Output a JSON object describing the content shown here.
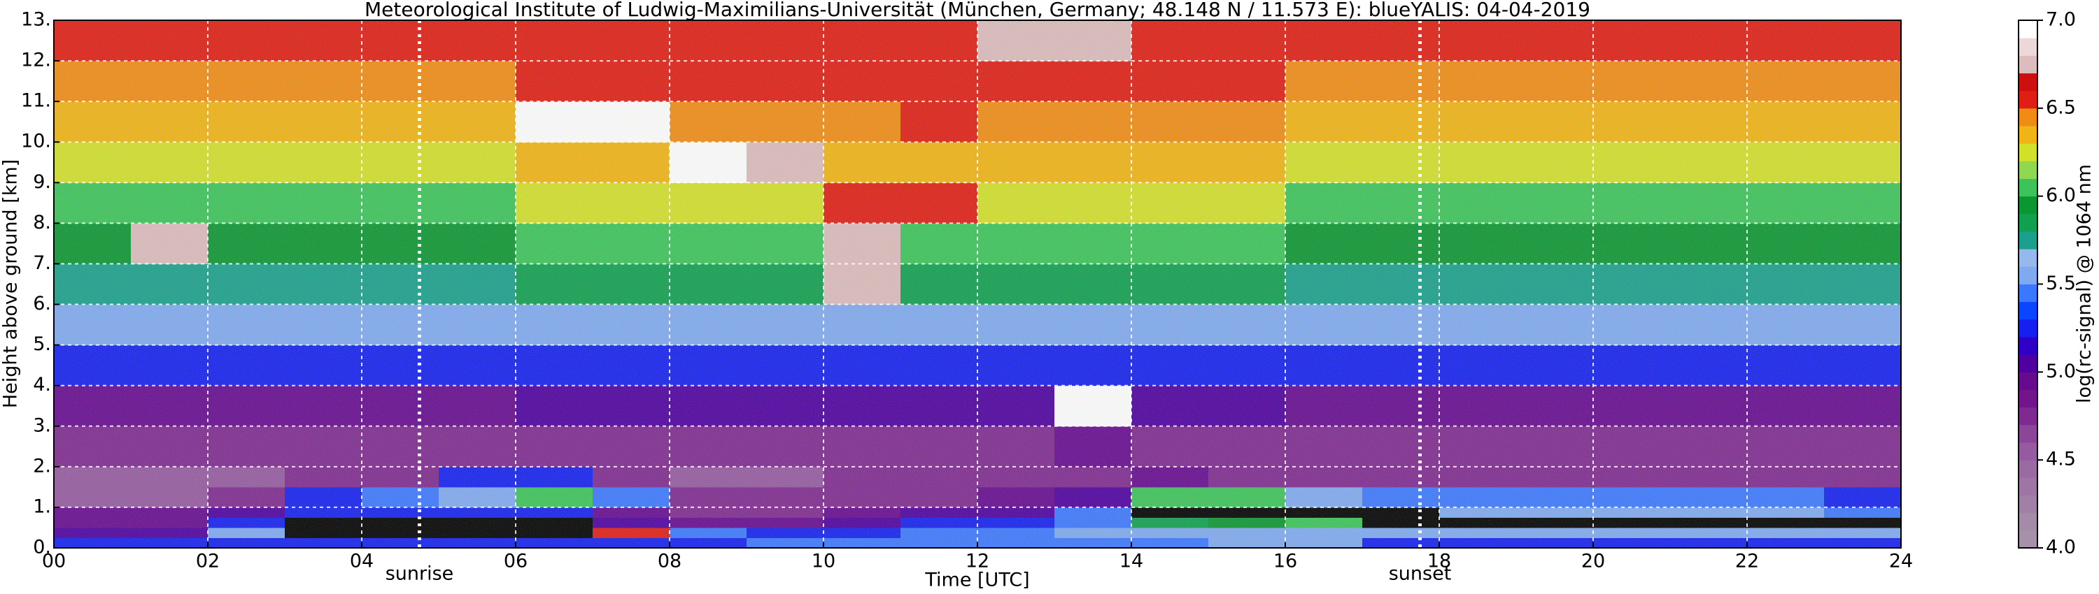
{
  "chart_data": {
    "type": "heatmap",
    "title": "Meteorological Institute of Ludwig-Maximilians-Universität (München, Germany; 48.148 N / 11.573 E):    blueYALIS: 04-04-2019",
    "xlabel": "Time [UTC]",
    "ylabel": "Height above ground [km]",
    "xlim": [
      0,
      24
    ],
    "xticks": [
      {
        "value": 0,
        "label": "00"
      },
      {
        "value": 2,
        "label": "02"
      },
      {
        "value": 4,
        "label": "04"
      },
      {
        "value": 6,
        "label": "06"
      },
      {
        "value": 8,
        "label": "08"
      },
      {
        "value": 10,
        "label": "10"
      },
      {
        "value": 12,
        "label": "12"
      },
      {
        "value": 14,
        "label": "14"
      },
      {
        "value": 16,
        "label": "16"
      },
      {
        "value": 18,
        "label": "18"
      },
      {
        "value": 20,
        "label": "20"
      },
      {
        "value": 22,
        "label": "22"
      },
      {
        "value": 24,
        "label": "24"
      }
    ],
    "ylim": [
      0,
      13
    ],
    "yticks": [
      {
        "value": 0,
        "label": "0."
      },
      {
        "value": 1,
        "label": "1."
      },
      {
        "value": 2,
        "label": "2."
      },
      {
        "value": 3,
        "label": "3."
      },
      {
        "value": 4,
        "label": "4."
      },
      {
        "value": 5,
        "label": "5."
      },
      {
        "value": 6,
        "label": "6."
      },
      {
        "value": 7,
        "label": "7."
      },
      {
        "value": 8,
        "label": "8."
      },
      {
        "value": 9,
        "label": "9."
      },
      {
        "value": 10,
        "label": "10."
      },
      {
        "value": 11,
        "label": "11."
      },
      {
        "value": 12,
        "label": "12."
      },
      {
        "value": 13,
        "label": "13."
      }
    ],
    "grid": true,
    "x_bins": [
      0,
      1,
      2,
      3,
      4,
      5,
      6,
      7,
      8,
      9,
      10,
      11,
      12,
      13,
      14,
      15,
      16,
      17,
      18,
      19,
      20,
      21,
      22,
      23,
      24
    ],
    "y_bins": [
      0,
      0.25,
      0.5,
      0.75,
      1,
      1.5,
      2,
      3,
      4,
      5,
      6,
      7,
      8,
      9,
      10,
      11,
      12,
      13
    ],
    "values": [
      [
        5.2,
        5.2,
        5.3,
        5.3,
        5.3,
        5.3,
        5.3,
        5.3,
        5.3,
        5.4,
        5.4,
        5.4,
        5.4,
        5.4,
        5.4,
        5.5,
        5.5,
        5.3,
        5.3,
        5.3,
        5.3,
        5.3,
        5.3,
        5.3
      ],
      [
        5.0,
        5.0,
        5.6,
        7.2,
        7.2,
        7.2,
        7.2,
        6.5,
        5.4,
        5.3,
        5.3,
        5.4,
        5.4,
        5.5,
        5.6,
        5.6,
        5.6,
        5.5,
        5.5,
        5.5,
        5.5,
        5.5,
        5.5,
        5.5
      ],
      [
        4.9,
        4.9,
        5.2,
        7.2,
        7.2,
        7.2,
        7.2,
        5.0,
        4.9,
        4.9,
        5.0,
        5.2,
        5.3,
        5.4,
        5.8,
        5.9,
        6.0,
        7.2,
        7.2,
        7.2,
        7.2,
        7.2,
        7.2,
        7.2
      ],
      [
        4.9,
        4.9,
        5.0,
        5.2,
        5.2,
        5.3,
        5.3,
        4.9,
        4.8,
        4.8,
        4.9,
        5.0,
        5.1,
        5.4,
        7.2,
        7.2,
        7.2,
        7.2,
        5.5,
        5.5,
        5.5,
        5.5,
        5.5,
        5.4
      ],
      [
        4.6,
        4.6,
        4.7,
        5.3,
        5.4,
        5.5,
        6.0,
        5.4,
        4.7,
        4.7,
        4.8,
        4.8,
        4.9,
        5.0,
        6.1,
        6.0,
        5.5,
        5.4,
        5.4,
        5.4,
        5.4,
        5.4,
        5.4,
        5.3
      ],
      [
        4.6,
        4.6,
        4.6,
        4.7,
        4.8,
        5.3,
        5.2,
        4.8,
        4.6,
        4.6,
        4.7,
        4.7,
        4.8,
        4.8,
        4.9,
        4.8,
        4.8,
        4.7,
        4.7,
        4.7,
        4.7,
        4.7,
        4.7,
        4.7
      ],
      [
        4.7,
        4.7,
        4.7,
        4.7,
        4.7,
        4.7,
        4.8,
        4.8,
        4.8,
        4.8,
        4.8,
        4.8,
        4.8,
        4.9,
        4.8,
        4.8,
        4.7,
        4.7,
        4.7,
        4.7,
        4.7,
        4.7,
        4.7,
        4.7
      ],
      [
        4.9,
        4.9,
        4.9,
        4.9,
        4.9,
        4.9,
        5.0,
        5.0,
        5.0,
        5.0,
        5.0,
        5.0,
        5.0,
        6.9,
        5.0,
        5.0,
        4.9,
        4.9,
        4.9,
        4.9,
        4.9,
        4.9,
        4.9,
        4.9
      ],
      [
        5.2,
        5.2,
        5.2,
        5.2,
        5.2,
        5.2,
        5.3,
        5.3,
        5.3,
        5.3,
        5.3,
        5.3,
        5.3,
        5.3,
        5.3,
        5.3,
        5.2,
        5.2,
        5.2,
        5.2,
        5.2,
        5.2,
        5.2,
        5.2
      ],
      [
        5.5,
        5.5,
        5.5,
        5.5,
        5.5,
        5.5,
        5.6,
        5.6,
        5.6,
        5.6,
        5.6,
        5.6,
        5.6,
        5.6,
        5.6,
        5.6,
        5.5,
        5.5,
        5.5,
        5.5,
        5.5,
        5.5,
        5.5,
        5.5
      ],
      [
        5.7,
        5.7,
        5.7,
        5.7,
        5.7,
        5.7,
        5.8,
        5.8,
        5.8,
        5.8,
        6.7,
        5.8,
        5.8,
        5.8,
        5.8,
        5.8,
        5.7,
        5.7,
        5.7,
        5.7,
        5.7,
        5.7,
        5.7,
        5.7
      ],
      [
        5.9,
        6.8,
        5.9,
        5.9,
        5.9,
        5.9,
        6.0,
        6.0,
        6.0,
        6.0,
        6.8,
        6.0,
        6.0,
        6.0,
        6.0,
        6.0,
        5.9,
        5.9,
        5.9,
        5.9,
        5.9,
        5.9,
        5.9,
        5.9
      ],
      [
        6.1,
        6.1,
        6.1,
        6.1,
        6.1,
        6.1,
        6.2,
        6.2,
        6.2,
        6.2,
        6.6,
        6.6,
        6.2,
        6.2,
        6.2,
        6.2,
        6.1,
        6.1,
        6.1,
        6.1,
        6.1,
        6.1,
        6.1,
        6.1
      ],
      [
        6.2,
        6.2,
        6.2,
        6.2,
        6.2,
        6.2,
        6.3,
        6.3,
        6.9,
        6.8,
        6.3,
        6.3,
        6.3,
        6.3,
        6.3,
        6.3,
        6.2,
        6.2,
        6.2,
        6.2,
        6.2,
        6.2,
        6.2,
        6.2
      ],
      [
        6.3,
        6.3,
        6.3,
        6.3,
        6.3,
        6.3,
        6.9,
        6.9,
        6.4,
        6.4,
        6.4,
        6.6,
        6.4,
        6.4,
        6.4,
        6.4,
        6.3,
        6.3,
        6.3,
        6.3,
        6.3,
        6.3,
        6.3,
        6.3
      ],
      [
        6.4,
        6.4,
        6.4,
        6.4,
        6.4,
        6.4,
        6.5,
        6.5,
        6.5,
        6.5,
        6.5,
        6.5,
        6.6,
        6.6,
        6.5,
        6.5,
        6.4,
        6.4,
        6.4,
        6.4,
        6.4,
        6.4,
        6.4,
        6.4
      ],
      [
        6.5,
        6.5,
        6.5,
        6.5,
        6.5,
        6.5,
        6.6,
        6.6,
        6.6,
        6.6,
        6.6,
        6.6,
        6.7,
        6.7,
        6.6,
        6.6,
        6.5,
        6.5,
        6.5,
        6.5,
        6.5,
        6.5,
        6.5,
        6.5
      ]
    ],
    "annotations": [
      {
        "text": "sunrise",
        "x": 4.75
      },
      {
        "text": "sunset",
        "x": 17.75
      }
    ],
    "colorbar": {
      "label": "log(rc-signal) @ 1064 nm",
      "lim": [
        4,
        7
      ],
      "ticks": [
        {
          "value": 4,
          "label": "4.0"
        },
        {
          "value": 4.5,
          "label": "4.5"
        },
        {
          "value": 5,
          "label": "5.0"
        },
        {
          "value": 5.5,
          "label": "5.5"
        },
        {
          "value": 6,
          "label": "6.0"
        },
        {
          "value": 6.5,
          "label": "6.5"
        },
        {
          "value": 7,
          "label": "7.0"
        }
      ],
      "colors": [
        "#a591a8",
        "#a48ca8",
        "#a080a6",
        "#9e76a4",
        "#9a6aa2",
        "#955aa0",
        "#8c4699",
        "#7f2a90",
        "#74148c",
        "#660a90",
        "#4e00a0",
        "#3000c8",
        "#1420f0",
        "#0a46ff",
        "#3c78ff",
        "#80aaf0",
        "#96b8ec",
        "#1aa08c",
        "#10a050",
        "#0c9632",
        "#3cc45a",
        "#90d850",
        "#d2e02a",
        "#f0b414",
        "#f08c14",
        "#e01e14",
        "#cc1010",
        "#dcbcbc",
        "#ecd8d8",
        "#ffffff"
      ],
      "over_color": "#000000"
    }
  }
}
